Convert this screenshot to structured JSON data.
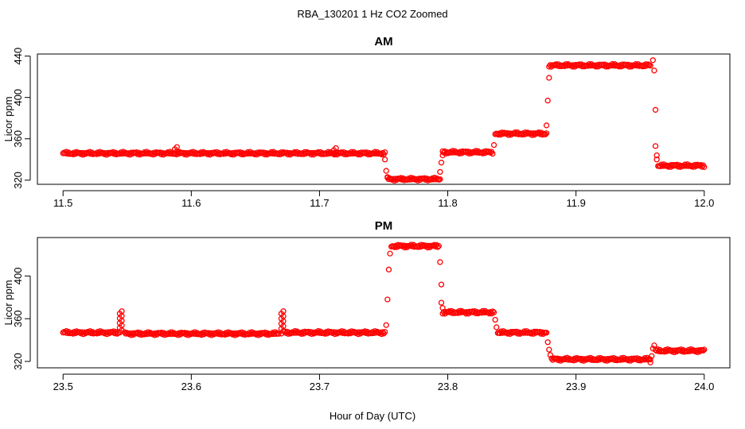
{
  "chart_data": {
    "type": "scatter",
    "title": "RBA_130201  1 Hz CO2 Zoomed",
    "xlabel": "Hour of Day (UTC)",
    "marker_color": "#ff0000",
    "panels": [
      {
        "title": "AM",
        "ylabel": "Licor ppm",
        "xlim": [
          11.5,
          12.0
        ],
        "ylim": [
          316,
          442
        ],
        "xticks": [
          "11.5",
          "11.6",
          "11.7",
          "11.8",
          "11.9",
          "12.0"
        ],
        "yticks": [
          "320",
          "360",
          "400",
          "440"
        ],
        "segments": [
          {
            "x": [
              11.5,
              11.751
            ],
            "y": 346
          },
          {
            "x": [
              11.753,
              11.794
            ],
            "y": 321
          },
          {
            "x": [
              11.796,
              11.835
            ],
            "y": 347
          },
          {
            "x": [
              11.837,
              11.877
            ],
            "y": 365
          },
          {
            "x": [
              11.879,
              11.958
            ],
            "y": 431
          },
          {
            "x": [
              11.964,
              12.0
            ],
            "y": 334
          }
        ],
        "spikes": [
          {
            "x": 11.588,
            "y": [
              346,
              352
            ]
          },
          {
            "x": 11.712,
            "y": [
              345,
              351
            ]
          }
        ],
        "transitions": [
          {
            "x": 11.751,
            "y": 340
          },
          {
            "x": 11.752,
            "y": 329
          },
          {
            "x": 11.753,
            "y": 323
          },
          {
            "x": 11.794,
            "y": 328
          },
          {
            "x": 11.795,
            "y": 337
          },
          {
            "x": 11.796,
            "y": 344
          },
          {
            "x": 11.836,
            "y": 354
          },
          {
            "x": 11.877,
            "y": 373
          },
          {
            "x": 11.878,
            "y": 397
          },
          {
            "x": 11.879,
            "y": 419
          },
          {
            "x": 11.96,
            "y": 436
          },
          {
            "x": 11.961,
            "y": 426
          },
          {
            "x": 11.962,
            "y": 388
          },
          {
            "x": 11.962,
            "y": 353
          },
          {
            "x": 11.963,
            "y": 344
          },
          {
            "x": 11.963,
            "y": 340
          }
        ]
      },
      {
        "title": "PM",
        "ylabel": "Licor ppm",
        "xlim": [
          23.5,
          24.0
        ],
        "ylim": [
          314,
          436
        ],
        "xticks": [
          "23.5",
          "23.6",
          "23.7",
          "23.8",
          "23.9",
          "24.0"
        ],
        "yticks": [
          "320",
          "360",
          "400"
        ],
        "segments": [
          {
            "x": [
              23.5,
              23.543
            ],
            "y": 347
          },
          {
            "x": [
              23.548,
              23.668
            ],
            "y": 346
          },
          {
            "x": [
              23.673,
              23.751
            ],
            "y": 347
          },
          {
            "x": [
              23.756,
              23.793
            ],
            "y": 428
          },
          {
            "x": [
              23.796,
              23.836
            ],
            "y": 366
          },
          {
            "x": [
              23.839,
              23.877
            ],
            "y": 347
          },
          {
            "x": [
              23.881,
              23.958
            ],
            "y": 322
          },
          {
            "x": [
              23.962,
              24.0
            ],
            "y": 330
          }
        ],
        "spikes": [
          {
            "x": 23.545,
            "y": [
              347,
              367
            ]
          },
          {
            "x": 23.671,
            "y": [
              346,
              367
            ]
          }
        ],
        "transitions": [
          {
            "x": 23.752,
            "y": 354
          },
          {
            "x": 23.753,
            "y": 378
          },
          {
            "x": 23.754,
            "y": 406
          },
          {
            "x": 23.755,
            "y": 421
          },
          {
            "x": 23.794,
            "y": 413
          },
          {
            "x": 23.795,
            "y": 392
          },
          {
            "x": 23.795,
            "y": 375
          },
          {
            "x": 23.796,
            "y": 370
          },
          {
            "x": 23.837,
            "y": 359
          },
          {
            "x": 23.838,
            "y": 352
          },
          {
            "x": 23.878,
            "y": 338
          },
          {
            "x": 23.879,
            "y": 331
          },
          {
            "x": 23.88,
            "y": 326
          },
          {
            "x": 23.958,
            "y": 319
          },
          {
            "x": 23.959,
            "y": 325
          },
          {
            "x": 23.96,
            "y": 332
          },
          {
            "x": 23.961,
            "y": 335
          }
        ]
      }
    ]
  }
}
